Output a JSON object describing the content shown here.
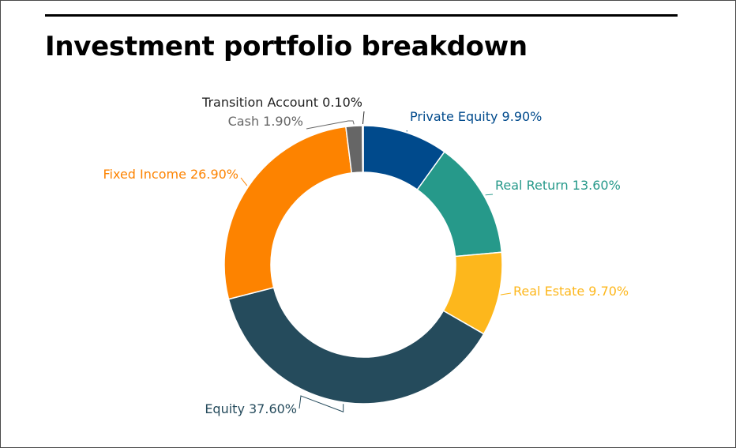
{
  "chart_data": {
    "type": "pie",
    "title": "Investment portfolio breakdown",
    "donut": true,
    "slices": [
      {
        "label": "Private Equity",
        "value": 9.9,
        "display": "Private Equity 9.90%",
        "color": "#004a8c"
      },
      {
        "label": "Real Return",
        "value": 13.6,
        "display": "Real Return 13.60%",
        "color": "#26998a"
      },
      {
        "label": "Real Estate",
        "value": 9.7,
        "display": "Real Estate 9.70%",
        "color": "#fdb71c"
      },
      {
        "label": "Equity",
        "value": 37.6,
        "display": "Equity 37.60%",
        "color": "#254b5c"
      },
      {
        "label": "Fixed Income",
        "value": 26.9,
        "display": "Fixed Income 26.90%",
        "color": "#fd8300"
      },
      {
        "label": "Cash",
        "value": 1.9,
        "display": "Cash 1.90%",
        "color": "#666666"
      },
      {
        "label": "Transition Account",
        "value": 0.1,
        "display": "Transition Account 0.10%",
        "color": "#222222"
      }
    ]
  }
}
